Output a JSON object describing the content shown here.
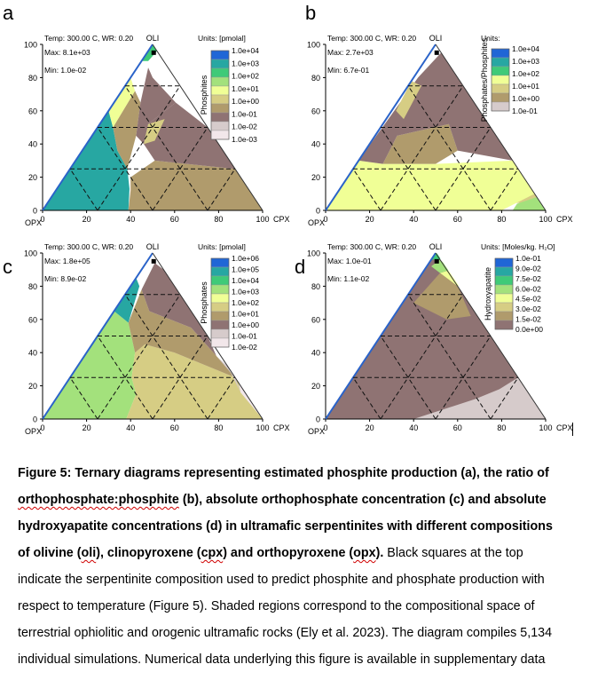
{
  "colors": {
    "levels10": [
      "#f2e7ea",
      "#d6cbcb",
      "#8f7373",
      "#b09b6c",
      "#d6cd84",
      "#f0ff96",
      "#a3e17c",
      "#3fca78",
      "#27a7a2",
      "#2066d6"
    ],
    "line": "#000000",
    "grid": "#222222"
  },
  "chart_data": [
    {
      "type": "ternary",
      "panel_label": "a",
      "header_left": "Temp: 300.00 C, WR: 0.20",
      "apex_label": "OLI",
      "units": "Units: [pmolal]",
      "max_text": "Max: 8.1e+03",
      "min_text": "Min: 1.0e-02",
      "colorbar_label": "Phosphites",
      "colorbar_ticks": [
        "1.0e+04",
        "1.0e+03",
        "1.0e+02",
        "1.0e+01",
        "1.0e+00",
        "1.0e-01",
        "1.0e-02",
        "1.0e-03"
      ],
      "left_ticks": [
        "0",
        "20",
        "40",
        "60",
        "80",
        "100"
      ],
      "bottom_ticks": [
        "0",
        "20",
        "40",
        "60",
        "80",
        "100"
      ],
      "left_corner": "OPX",
      "right_corner": "CPX",
      "ylim": [
        0,
        100
      ],
      "xlim": [
        0,
        100
      ],
      "marker": {
        "oli": 95,
        "cpx": 3
      }
    },
    {
      "type": "ternary",
      "panel_label": "b",
      "header_left": "Temp: 300.00 C, WR: 0.20",
      "apex_label": "OLI",
      "units": "Units:",
      "max_text": "Max: 2.7e+03",
      "min_text": "Min: 6.7e-01",
      "colorbar_label": "Phosphates/Phosphites",
      "colorbar_ticks": [
        "1.0e+04",
        "1.0e+03",
        "1.0e+02",
        "1.0e+01",
        "1.0e+00",
        "1.0e-01"
      ],
      "left_ticks": [
        "0",
        "20",
        "40",
        "60",
        "80",
        "100"
      ],
      "bottom_ticks": [
        "0",
        "20",
        "40",
        "60",
        "80",
        "100"
      ],
      "left_corner": "OPX",
      "right_corner": "CPX",
      "ylim": [
        0,
        100
      ],
      "xlim": [
        0,
        100
      ],
      "marker": {
        "oli": 95,
        "cpx": 3
      }
    },
    {
      "type": "ternary",
      "panel_label": "c",
      "header_left": "Temp: 300.00 C, WR: 0.20",
      "apex_label": "OLI",
      "units": "Units: [pmolal]",
      "max_text": "Max: 1.8e+05",
      "min_text": "Min: 8.9e-02",
      "colorbar_label": "Phosphates",
      "colorbar_ticks": [
        "1.0e+06",
        "1.0e+05",
        "1.0e+04",
        "1.0e+03",
        "1.0e+02",
        "1.0e+01",
        "1.0e+00",
        "1.0e-01",
        "1.0e-02"
      ],
      "left_ticks": [
        "0",
        "20",
        "40",
        "60",
        "80",
        "100"
      ],
      "bottom_ticks": [
        "0",
        "20",
        "40",
        "60",
        "80",
        "100"
      ],
      "left_corner": "OPX",
      "right_corner": "CPX",
      "ylim": [
        0,
        100
      ],
      "xlim": [
        0,
        100
      ],
      "marker": {
        "oli": 95,
        "cpx": 3
      }
    },
    {
      "type": "ternary",
      "panel_label": "d",
      "header_left": "Max: 1.0e-01",
      "apex_label": "OLI",
      "units": "Units: [Moles/kg. H₂O]",
      "max_text": "Max: 1.0e-01",
      "min_text": "Min: 1.1e-02",
      "colorbar_label": "Hydroxyapatite",
      "colorbar_ticks": [
        "1.0e-01",
        "9.0e-02",
        "7.5e-02",
        "6.0e-02",
        "4.5e-02",
        "3.0e-02",
        "1.5e-02",
        "0.0e+00"
      ],
      "left_ticks": [
        "0",
        "20",
        "40",
        "60",
        "80",
        "100"
      ],
      "bottom_ticks": [
        "0",
        "20",
        "40",
        "60",
        "80",
        "100"
      ],
      "left_corner": "OPX",
      "right_corner": "CPX",
      "ylim": [
        0,
        100
      ],
      "xlim": [
        0,
        100
      ],
      "marker": {
        "oli": 95,
        "cpx": 3
      }
    }
  ],
  "caption": {
    "bold_1": "Figure 5: Ternary diagrams representing estimated phosphite production (a), the ratio of",
    "bold_2a": "orthophosphate:phosphite",
    "bold_2b": " (b), absolute orthophosphate concentration (c) and absolute",
    "bold_3": "hydroxyapatite concentrations (d) in ultramafic serpentinites with different compositions",
    "bold_4a": "of olivine (",
    "bold_4b": "oli",
    "bold_4c": "), clinopyroxene (",
    "bold_4d": "cpx",
    "bold_4e": ") and orthopyroxene (",
    "bold_4f": "opx",
    "bold_4g": ").",
    "normal_4": " Black squares at the top",
    "line_5": "indicate the serpentinite composition used to predict phosphite and phosphate production with",
    "line_6": "respect to temperature (Figure 5). Shaded regions correspond to the compositional space of",
    "line_7": "terrestrial ophiolitic and orogenic ultramafic rocks (Ely et al. 2023). The diagram compiles 5,134",
    "line_8": "individual simulations. Numerical data underlying this figure is available in supplementary data"
  }
}
